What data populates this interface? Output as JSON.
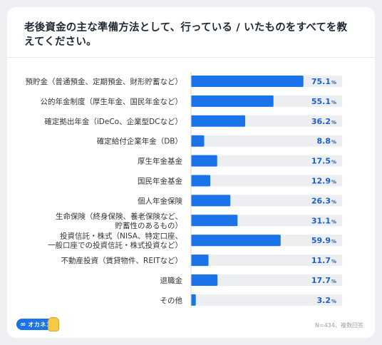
{
  "title": "老後資金の主な準備方法として、行っている / いたものをすべてを教えてください。",
  "footnote": "N=434、複数回答",
  "logo": {
    "text": "オカネコ",
    "mark": "∞"
  },
  "colors": {
    "bar": "#1a73e8",
    "track": "#eceef1",
    "value": "#1a5fd0"
  },
  "chart_data": {
    "type": "bar",
    "orientation": "horizontal",
    "categories": [
      [
        "預貯金（普通預金、定期預金、財形貯蓄など）"
      ],
      [
        "公的年金制度（厚生年金、国民年金など）"
      ],
      [
        "確定拠出年金（iDeCo、企業型DCなど）"
      ],
      [
        "確定給付企業年金（DB）"
      ],
      [
        "厚生年金基金"
      ],
      [
        "国民年金基金"
      ],
      [
        "個人年金保険"
      ],
      [
        "生命保険（終身保険、養老保険など、",
        "貯蓄性のあるもの）"
      ],
      [
        "投資信託・株式（NISA、特定口座、",
        "一般口座での投資信託・株式投資など）"
      ],
      [
        "不動産投資（賃貸物件、REITなど）"
      ],
      [
        "退職金"
      ],
      [
        "その他"
      ]
    ],
    "values": [
      75.1,
      55.1,
      36.2,
      8.8,
      17.5,
      12.9,
      26.3,
      31.1,
      59.9,
      11.7,
      17.7,
      3.2
    ],
    "unit": "%",
    "xlim": [
      0,
      100
    ]
  }
}
